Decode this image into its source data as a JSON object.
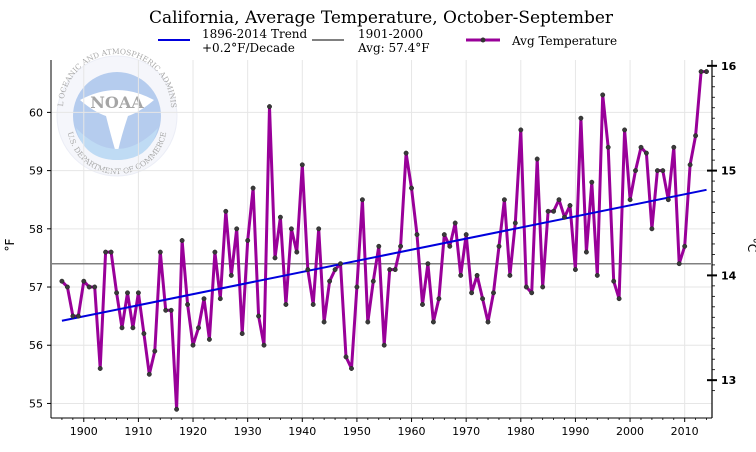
{
  "chart_data": {
    "type": "line",
    "title": "California, Average Temperature, October-September",
    "ylabel": "°F",
    "y2label": "°C",
    "xlim": [
      1894,
      2015
    ],
    "ylim": [
      54.75,
      60.9
    ],
    "x_ticks": [
      "1900",
      "1910",
      "1920",
      "1930",
      "1940",
      "1950",
      "1960",
      "1970",
      "1980",
      "1990",
      "2000",
      "2010"
    ],
    "y_ticks": [
      "55",
      "56",
      "57",
      "58",
      "59",
      "60"
    ],
    "y2_ticks": [
      "13",
      "14",
      "15",
      "16"
    ],
    "grid": true,
    "legend_position": "top",
    "legend": {
      "trend": [
        "1896-2014 Trend",
        "+0.2°F/Decade"
      ],
      "avg": [
        "1901-2000",
        "Avg: 57.4°F"
      ],
      "series": "Avg Temperature"
    },
    "colors": {
      "series": "#990099",
      "trend": "#0000dd",
      "average": "#808080"
    },
    "average_value": 57.4,
    "trend_line": {
      "x": [
        1896,
        2014
      ],
      "y": [
        56.42,
        58.67
      ]
    },
    "series": [
      {
        "name": "Avg Temperature",
        "x": [
          1896,
          1897,
          1898,
          1899,
          1900,
          1901,
          1902,
          1903,
          1904,
          1905,
          1906,
          1907,
          1908,
          1909,
          1910,
          1911,
          1912,
          1913,
          1914,
          1915,
          1916,
          1917,
          1918,
          1919,
          1920,
          1921,
          1922,
          1923,
          1924,
          1925,
          1926,
          1927,
          1928,
          1929,
          1930,
          1931,
          1932,
          1933,
          1934,
          1935,
          1936,
          1937,
          1938,
          1939,
          1940,
          1941,
          1942,
          1943,
          1944,
          1945,
          1946,
          1947,
          1948,
          1949,
          1950,
          1951,
          1952,
          1953,
          1954,
          1955,
          1956,
          1957,
          1958,
          1959,
          1960,
          1961,
          1962,
          1963,
          1964,
          1965,
          1966,
          1967,
          1968,
          1969,
          1970,
          1971,
          1972,
          1973,
          1974,
          1975,
          1976,
          1977,
          1978,
          1979,
          1980,
          1981,
          1982,
          1983,
          1984,
          1985,
          1986,
          1987,
          1988,
          1989,
          1990,
          1991,
          1992,
          1993,
          1994,
          1995,
          1996,
          1997,
          1998,
          1999,
          2000,
          2001,
          2002,
          2003,
          2004,
          2005,
          2006,
          2007,
          2008,
          2009,
          2010,
          2011,
          2012,
          2013,
          2014
        ],
        "values": [
          57.1,
          57.0,
          56.5,
          56.5,
          57.1,
          57.0,
          57.0,
          55.6,
          57.6,
          57.6,
          56.9,
          56.3,
          56.9,
          56.3,
          56.9,
          56.2,
          55.5,
          55.9,
          57.6,
          56.6,
          56.6,
          54.9,
          57.8,
          56.7,
          56.0,
          56.3,
          56.8,
          56.1,
          57.6,
          56.8,
          58.3,
          57.2,
          58.0,
          56.2,
          57.8,
          58.7,
          56.5,
          56.0,
          60.1,
          57.5,
          58.2,
          56.7,
          58.0,
          57.6,
          59.1,
          57.3,
          56.7,
          58.0,
          56.4,
          57.1,
          57.3,
          57.4,
          55.8,
          55.6,
          57.0,
          58.5,
          56.4,
          57.1,
          57.7,
          56.0,
          57.3,
          57.3,
          57.7,
          59.3,
          58.7,
          57.9,
          56.7,
          57.4,
          56.4,
          56.8,
          57.9,
          57.7,
          58.1,
          57.2,
          57.9,
          56.9,
          57.2,
          56.8,
          56.4,
          56.9,
          57.7,
          58.5,
          57.2,
          58.1,
          59.7,
          57.0,
          56.9,
          59.2,
          57.0,
          58.3,
          58.3,
          58.5,
          58.2,
          58.4,
          57.3,
          59.9,
          57.6,
          58.8,
          57.2,
          60.3,
          59.4,
          57.1,
          56.8,
          59.7,
          58.5,
          59.0,
          59.4,
          59.3,
          58.0,
          59.0,
          59.0,
          58.5,
          59.4,
          57.4,
          57.7,
          59.1,
          59.6,
          60.7,
          60.7
        ]
      }
    ]
  },
  "logo": {
    "ring_text": "NATIONAL OCEANIC AND ATMOSPHERIC ADMINISTRATION",
    "bottom_text": "U.S. DEPARTMENT OF COMMERCE",
    "center_text": "NOAA"
  }
}
